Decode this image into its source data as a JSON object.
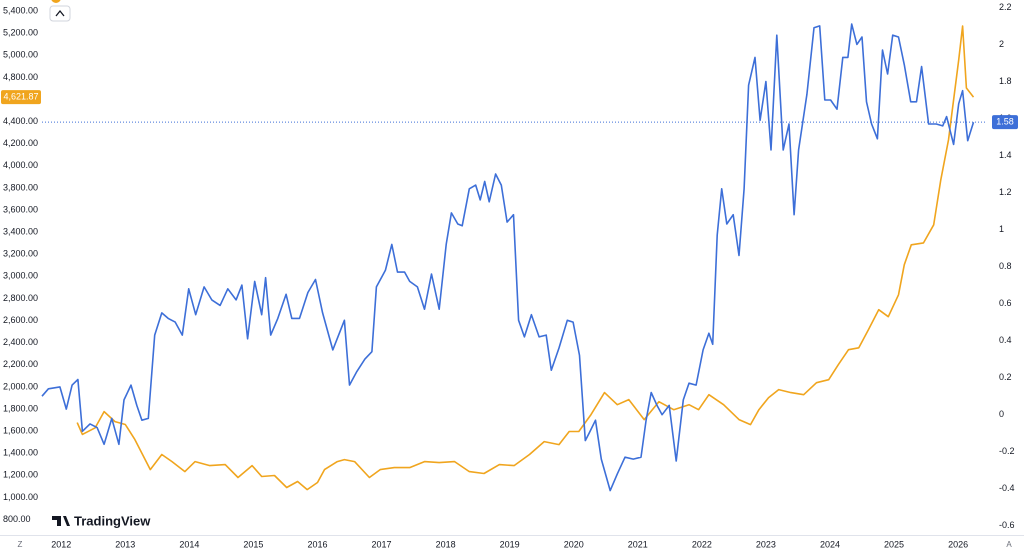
{
  "chart_data": {
    "type": "line",
    "watermark": "TradingView",
    "axis_buttons": [
      "Z",
      "A"
    ],
    "xlim": [
      2011.7,
      2026.42
    ],
    "xticks": [
      2012,
      2013,
      2014,
      2015,
      2016,
      2017,
      2018,
      2019,
      2020,
      2021,
      2022,
      2023,
      2024,
      2025,
      2026
    ],
    "ylim": [
      660,
      5500
    ],
    "yticks": [
      {
        "value": 800,
        "label": "800.00"
      },
      {
        "value": 1000,
        "label": "1,000.00"
      },
      {
        "value": 1200,
        "label": "1,200.00"
      },
      {
        "value": 1400,
        "label": "1,400.00"
      },
      {
        "value": 1600,
        "label": "1,600.00"
      },
      {
        "value": 1800,
        "label": "1,800.00"
      },
      {
        "value": 2000,
        "label": "2,000.00"
      },
      {
        "value": 2200,
        "label": "2,200.00"
      },
      {
        "value": 2400,
        "label": "2,400.00"
      },
      {
        "value": 2600,
        "label": "2,600.00"
      },
      {
        "value": 2800,
        "label": "2,800.00"
      },
      {
        "value": 3000,
        "label": "3,000.00"
      },
      {
        "value": 3200,
        "label": "3,200.00"
      },
      {
        "value": 3400,
        "label": "3,400.00"
      },
      {
        "value": 3600,
        "label": "3,600.00"
      },
      {
        "value": 3800,
        "label": "3,800.00"
      },
      {
        "value": 4000,
        "label": "4,000.00"
      },
      {
        "value": 4200,
        "label": "4,200.00"
      },
      {
        "value": 4400,
        "label": "4,400.00"
      },
      {
        "value": 4600,
        "label": "4,600.00"
      },
      {
        "value": 4800,
        "label": "4,800.00"
      },
      {
        "value": 5000,
        "label": "5,000.00"
      },
      {
        "value": 5200,
        "label": "5,200.00"
      },
      {
        "value": 5400,
        "label": "5,400.00"
      }
    ],
    "y2lim": [
      -0.65,
      2.24
    ],
    "y2ticks": [
      -0.6,
      -0.4,
      -0.2,
      0,
      0.2,
      0.4,
      0.6,
      0.8,
      1,
      1.2,
      1.4,
      1.6,
      1.8,
      2,
      2.2
    ],
    "grid": false,
    "series": [
      {
        "color": "#f0a51e",
        "axis": "y",
        "price_label": "4,621.87",
        "x": [
          2012.25,
          2012.33,
          2012.53,
          2012.67,
          2012.84,
          2013.0,
          2013.15,
          2013.39,
          2013.57,
          2013.73,
          2013.93,
          2014.09,
          2014.32,
          2014.56,
          2014.76,
          2014.98,
          2015.13,
          2015.33,
          2015.52,
          2015.69,
          2015.84,
          2016.0,
          2016.11,
          2016.31,
          2016.42,
          2016.58,
          2016.81,
          2016.98,
          2017.2,
          2017.44,
          2017.67,
          2017.9,
          2018.14,
          2018.37,
          2018.6,
          2018.84,
          2019.07,
          2019.31,
          2019.54,
          2019.77,
          2019.93,
          2020.08,
          2020.27,
          2020.48,
          2020.68,
          2020.86,
          2021.1,
          2021.33,
          2021.56,
          2021.8,
          2021.95,
          2022.11,
          2022.34,
          2022.58,
          2022.76,
          2022.89,
          2023.04,
          2023.2,
          2023.39,
          2023.59,
          2023.79,
          2023.98,
          2024.13,
          2024.29,
          2024.45,
          2024.6,
          2024.76,
          2024.91,
          2025.07,
          2025.16,
          2025.27,
          2025.46,
          2025.62,
          2025.73,
          2025.85,
          2025.93,
          2026.01,
          2026.07,
          2026.13,
          2026.24
        ],
        "values": [
          1677,
          1570,
          1630,
          1776,
          1686,
          1660,
          1523,
          1252,
          1388,
          1324,
          1234,
          1324,
          1288,
          1297,
          1180,
          1288,
          1189,
          1198,
          1090,
          1144,
          1071,
          1135,
          1252,
          1324,
          1342,
          1324,
          1180,
          1252,
          1270,
          1270,
          1324,
          1315,
          1324,
          1234,
          1216,
          1297,
          1288,
          1388,
          1505,
          1478,
          1596,
          1596,
          1749,
          1948,
          1839,
          1885,
          1704,
          1866,
          1794,
          1839,
          1794,
          1929,
          1839,
          1704,
          1659,
          1794,
          1902,
          1975,
          1948,
          1929,
          2038,
          2065,
          2201,
          2336,
          2354,
          2517,
          2698,
          2635,
          2833,
          3105,
          3285,
          3303,
          3466,
          3873,
          4234,
          4596,
          4957,
          5264,
          4704,
          4621.87
        ]
      },
      {
        "color": "#3d6fd8",
        "axis": "y2",
        "x": [
          2011.7,
          2011.8,
          2011.98,
          2012.08,
          2012.17,
          2012.26,
          2012.33,
          2012.45,
          2012.56,
          2012.67,
          2012.79,
          2012.9,
          2012.98,
          2013.09,
          2013.18,
          2013.26,
          2013.36,
          2013.46,
          2013.57,
          2013.67,
          2013.78,
          2013.89,
          2013.99,
          2014.1,
          2014.23,
          2014.35,
          2014.48,
          2014.6,
          2014.73,
          2014.82,
          2014.91,
          2015.02,
          2015.13,
          2015.19,
          2015.27,
          2015.38,
          2015.51,
          2015.6,
          2015.72,
          2015.85,
          2015.97,
          2016.08,
          2016.24,
          2016.42,
          2016.5,
          2016.61,
          2016.74,
          2016.85,
          2016.92,
          2017.06,
          2017.16,
          2017.25,
          2017.36,
          2017.44,
          2017.56,
          2017.67,
          2017.78,
          2017.9,
          2018.01,
          2018.09,
          2018.19,
          2018.26,
          2018.37,
          2018.47,
          2018.54,
          2018.61,
          2018.68,
          2018.78,
          2018.87,
          2018.96,
          2019.06,
          2019.14,
          2019.23,
          2019.34,
          2019.46,
          2019.57,
          2019.65,
          2019.77,
          2019.9,
          2019.99,
          2020.09,
          2020.18,
          2020.24,
          2020.34,
          2020.43,
          2020.57,
          2020.68,
          2020.8,
          2020.93,
          2021.05,
          2021.13,
          2021.21,
          2021.3,
          2021.38,
          2021.49,
          2021.6,
          2021.71,
          2021.8,
          2021.91,
          2022.02,
          2022.11,
          2022.17,
          2022.24,
          2022.31,
          2022.39,
          2022.49,
          2022.58,
          2022.66,
          2022.73,
          2022.83,
          2022.91,
          2023.0,
          2023.08,
          2023.17,
          2023.27,
          2023.36,
          2023.44,
          2023.51,
          2023.64,
          2023.75,
          2023.84,
          2023.92,
          2024.01,
          2024.11,
          2024.2,
          2024.28,
          2024.34,
          2024.42,
          2024.5,
          2024.57,
          2024.65,
          2024.74,
          2024.82,
          2024.9,
          2024.98,
          2025.07,
          2025.16,
          2025.26,
          2025.35,
          2025.43,
          2025.54,
          2025.66,
          2025.76,
          2025.82,
          2025.93,
          2026.01,
          2026.07,
          2026.15,
          2026.24
        ],
        "values": [
          0.1,
          0.14,
          0.15,
          0.03,
          0.16,
          0.19,
          -0.09,
          -0.05,
          -0.07,
          -0.16,
          -0.02,
          -0.16,
          0.08,
          0.16,
          0.05,
          -0.03,
          -0.02,
          0.43,
          0.55,
          0.52,
          0.5,
          0.43,
          0.68,
          0.54,
          0.69,
          0.62,
          0.59,
          0.68,
          0.62,
          0.7,
          0.41,
          0.72,
          0.54,
          0.74,
          0.43,
          0.52,
          0.65,
          0.52,
          0.52,
          0.66,
          0.73,
          0.55,
          0.35,
          0.51,
          0.16,
          0.23,
          0.3,
          0.34,
          0.69,
          0.78,
          0.92,
          0.77,
          0.77,
          0.72,
          0.69,
          0.57,
          0.76,
          0.57,
          0.92,
          1.09,
          1.03,
          1.02,
          1.22,
          1.24,
          1.16,
          1.26,
          1.15,
          1.3,
          1.24,
          1.04,
          1.08,
          0.51,
          0.42,
          0.54,
          0.42,
          0.43,
          0.24,
          0.36,
          0.51,
          0.5,
          0.32,
          -0.14,
          -0.1,
          -0.03,
          -0.24,
          -0.41,
          -0.32,
          -0.23,
          -0.24,
          -0.23,
          -0.03,
          0.12,
          0.05,
          0.0,
          0.05,
          -0.25,
          0.08,
          0.17,
          0.16,
          0.35,
          0.44,
          0.38,
          0.97,
          1.22,
          1.03,
          1.08,
          0.86,
          1.22,
          1.78,
          1.93,
          1.59,
          1.8,
          1.43,
          2.05,
          1.43,
          1.57,
          1.08,
          1.43,
          1.73,
          2.09,
          2.1,
          1.7,
          1.7,
          1.65,
          1.93,
          1.93,
          2.11,
          2.0,
          2.04,
          1.69,
          1.57,
          1.49,
          1.97,
          1.84,
          2.05,
          2.04,
          1.89,
          1.69,
          1.69,
          1.88,
          1.57,
          1.57,
          1.56,
          1.61,
          1.46,
          1.68,
          1.75,
          1.48,
          1.58
        ]
      }
    ]
  }
}
